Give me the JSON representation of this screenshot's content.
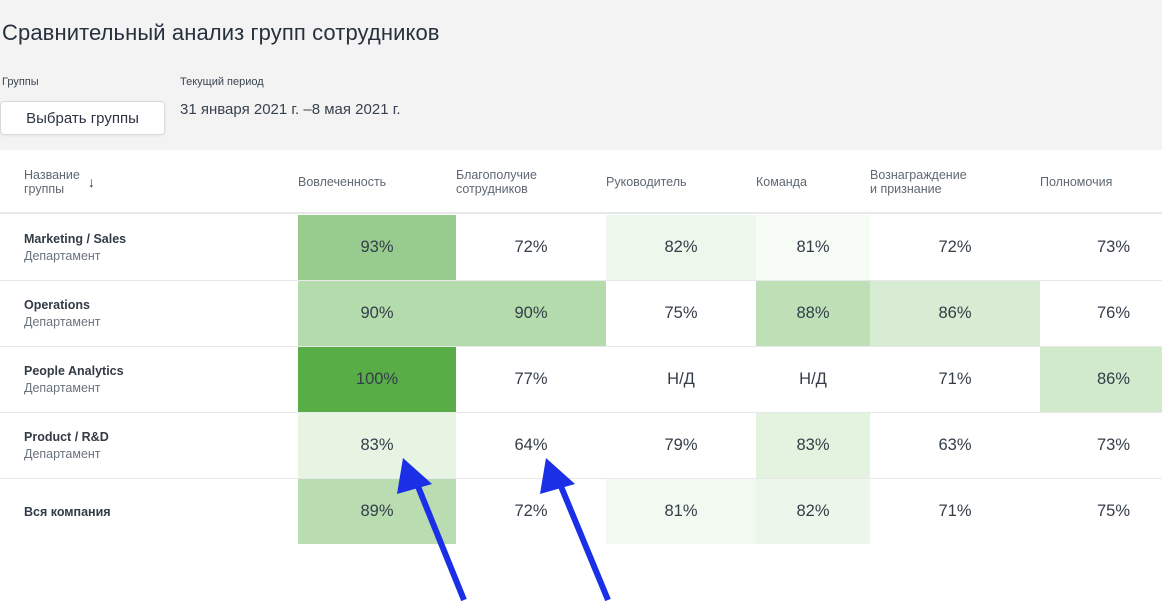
{
  "header": {
    "title": "Сравнительный анализ групп сотрудников",
    "groups_label": "Группы",
    "period_label": "Текущий период",
    "select_groups_button": "Выбрать группы",
    "period_value": "31 января 2021 г. –8 мая 2021 г."
  },
  "table": {
    "columns": [
      "Название\nгруппы",
      "Вовлеченность",
      "Благополучие\nсотрудников",
      "Руководитель",
      "Команда",
      "Вознаграждение\nи признание",
      "Полномочия"
    ],
    "rows": [
      {
        "name": "Marketing / Sales",
        "type": "Департамент",
        "values": [
          "93%",
          "72%",
          "82%",
          "81%",
          "72%",
          "73%"
        ],
        "colors": [
          "#97cc8e",
          "#ffffff",
          "#eef7ec",
          "#f6fbf5",
          "#ffffff",
          "#ffffff"
        ]
      },
      {
        "name": "Operations",
        "type": "Департамент",
        "values": [
          "90%",
          "90%",
          "75%",
          "88%",
          "86%",
          "76%"
        ],
        "colors": [
          "#b4dbac",
          "#b4dbac",
          "#ffffff",
          "#bfe0b7",
          "#d7ecd2",
          "#ffffff"
        ]
      },
      {
        "name": "People Analytics",
        "type": "Департамент",
        "values": [
          "100%",
          "77%",
          "Н/Д",
          "Н/Д",
          "71%",
          "86%"
        ],
        "colors": [
          "#58ad47",
          "#ffffff",
          "#ffffff",
          "#ffffff",
          "#ffffff",
          "#d2eacc"
        ]
      },
      {
        "name": "Product / R&D",
        "type": "Департамент",
        "values": [
          "83%",
          "64%",
          "79%",
          "83%",
          "63%",
          "73%"
        ],
        "colors": [
          "#e7f4e4",
          "#ffffff",
          "#ffffff",
          "#e4f2e0",
          "#ffffff",
          "#ffffff"
        ]
      },
      {
        "name": "Вся компания",
        "type": "",
        "values": [
          "89%",
          "72%",
          "81%",
          "82%",
          "71%",
          "75%"
        ],
        "colors": [
          "#b9ddb1",
          "#ffffff",
          "#f2f9f0",
          "#ecf6ea",
          "#ffffff",
          "#ffffff"
        ]
      }
    ]
  },
  "annotation_color": "#1a2fe6"
}
